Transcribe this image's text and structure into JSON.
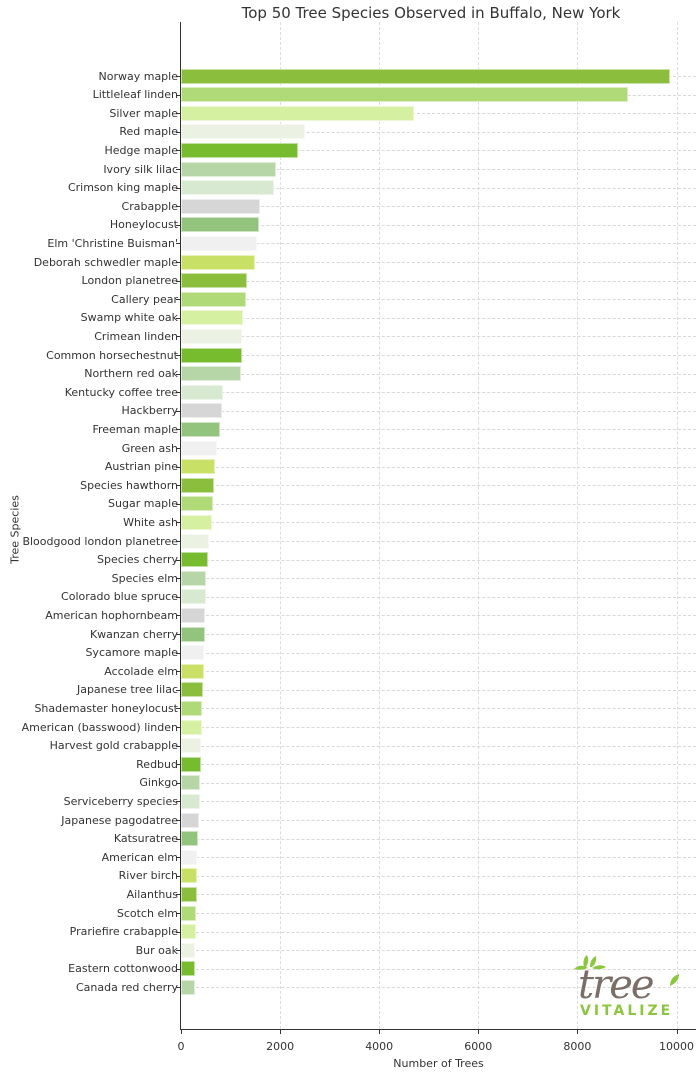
{
  "chart_data": {
    "type": "bar",
    "orientation": "horizontal",
    "title": "Top 50 Tree Species Observed in Buffalo, New York",
    "xlabel": "Number of Trees",
    "ylabel": "Tree Species",
    "xlim": [
      0,
      10400
    ],
    "xticks": [
      0,
      2000,
      4000,
      6000,
      8000,
      10000
    ],
    "grid": true,
    "legend": null,
    "categories": [
      "Norway maple",
      "Littleleaf linden",
      "Silver maple",
      "Red maple",
      "Hedge maple",
      "Ivory silk lilac",
      "Crimson king maple",
      "Crabapple",
      "Honeylocust",
      "Elm 'Christine Buisman'",
      "Deborah schwedler maple",
      "London planetree",
      "Callery pear",
      "Swamp white oak",
      "Crimean linden",
      "Common horsechestnut",
      "Northern red oak",
      "Kentucky coffee tree",
      "Hackberry",
      "Freeman maple",
      "Green ash",
      "Austrian pine",
      "Species hawthorn",
      "Sugar maple",
      "White ash",
      "Bloodgood london planetree",
      "Species cherry",
      "Species elm",
      "Colorado blue spruce",
      "American hophornbeam",
      "Kwanzan cherry",
      "Sycamore maple",
      "Accolade elm",
      "Japanese tree lilac",
      "Shademaster honeylocust",
      "American (basswood) linden",
      "Harvest gold crabapple",
      "Redbud",
      "Ginkgo",
      "Serviceberry species",
      "Japanese pagodatree",
      "Katsuratree",
      "American elm",
      "River birch",
      "Ailanthus",
      "Scotch elm",
      "Prariefire crabapple",
      "Bur oak",
      "Eastern cottonwood",
      "Canada red cherry"
    ],
    "values": [
      9860,
      9030,
      4710,
      2500,
      2360,
      1920,
      1880,
      1600,
      1570,
      1530,
      1490,
      1330,
      1310,
      1250,
      1240,
      1230,
      1210,
      850,
      830,
      790,
      720,
      690,
      670,
      640,
      630,
      560,
      540,
      510,
      510,
      490,
      480,
      460,
      460,
      450,
      430,
      430,
      400,
      400,
      390,
      390,
      360,
      340,
      330,
      330,
      320,
      310,
      300,
      290,
      290,
      280
    ],
    "colors": [
      "#8abe3c",
      "#b0d978",
      "#d4f0a0",
      "#ebf1e3",
      "#76bc2e",
      "#b7d6a8",
      "#d8e9d2",
      "#d6d6d6",
      "#93c47d",
      "#f0f0f0",
      "#c9e067"
    ]
  },
  "logo": {
    "word1": "tree",
    "word2": "VITALIZE"
  }
}
